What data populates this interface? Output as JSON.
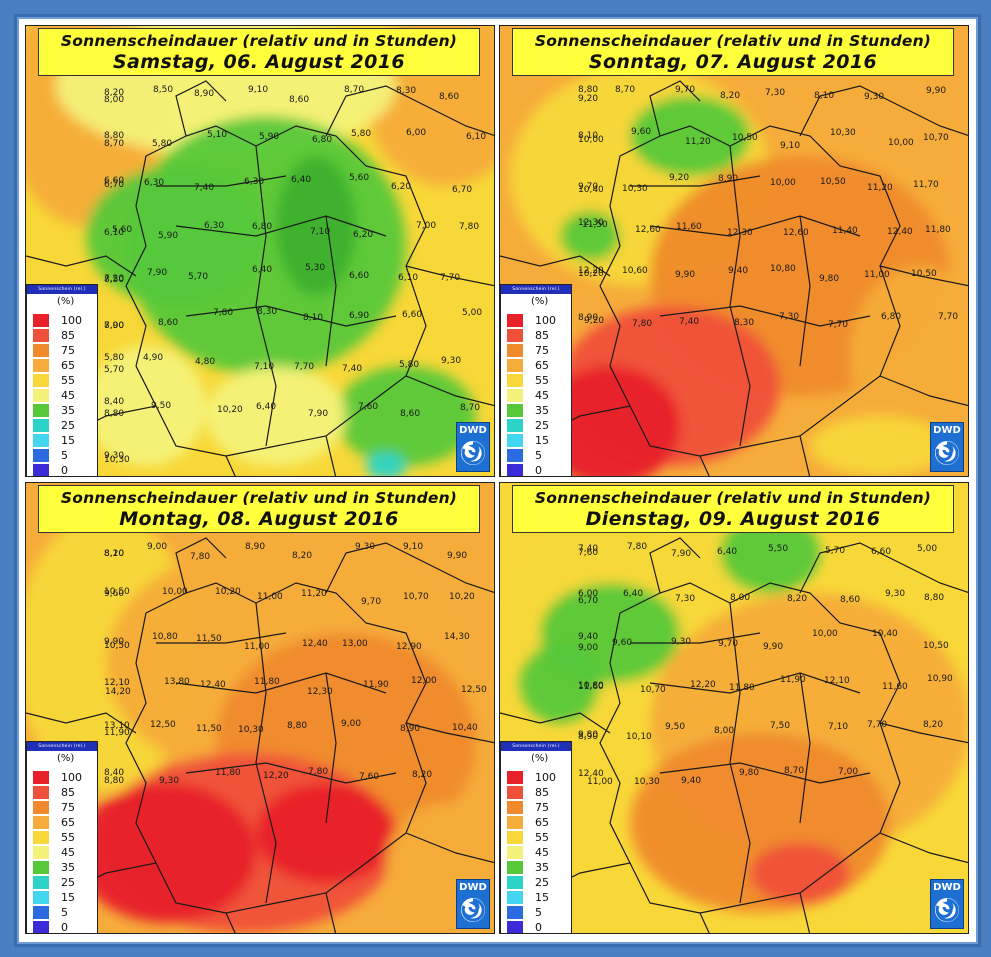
{
  "legend": {
    "header": "Sonnenschein (rel.)",
    "unit": "(%)",
    "levels": [
      {
        "label": "100",
        "color": "#e8202a"
      },
      {
        "label": "85",
        "color": "#f0503a"
      },
      {
        "label": "75",
        "color": "#f08a2c"
      },
      {
        "label": "65",
        "color": "#f6ac3a"
      },
      {
        "label": "55",
        "color": "#f8d838"
      },
      {
        "label": "45",
        "color": "#f4f27a"
      },
      {
        "label": "35",
        "color": "#56c83a"
      },
      {
        "label": "25",
        "color": "#2cd4c8"
      },
      {
        "label": "15",
        "color": "#42d6f0"
      },
      {
        "label": "5",
        "color": "#2a6ce0"
      },
      {
        "label": "0",
        "color": "#3a2ad8"
      }
    ]
  },
  "logo": {
    "text": "DWD"
  },
  "panels": [
    {
      "id": "sat",
      "title1": "Sonnenscheindauer (relativ und in Stunden)",
      "title2": "Samstag, 06. August 2016",
      "theme": "green",
      "values": [
        "8,00",
        "8,20",
        "8,50",
        "8,90",
        "9,10",
        "8,60",
        "8,70",
        "8,30",
        "8,60",
        "8,80",
        "8,70",
        "5,80",
        "5,10",
        "5,90",
        "6,80",
        "5,80",
        "6,00",
        "6,10",
        "6,70",
        "6,60",
        "6,30",
        "7,40",
        "6,30",
        "6,40",
        "5,60",
        "6,20",
        "6,70",
        "6,10",
        "5,60",
        "5,90",
        "6,30",
        "6,80",
        "7,10",
        "6,20",
        "7,00",
        "7,80",
        "8,50",
        "7,20",
        "7,90",
        "5,70",
        "6,40",
        "5,30",
        "6,60",
        "6,10",
        "7,70",
        "7,90",
        "8,00",
        "8,60",
        "7,80",
        "8,30",
        "8,10",
        "6,90",
        "6,60",
        "5,00",
        "5,70",
        "5,80",
        "4,90",
        "4,80",
        "7,10",
        "7,70",
        "7,40",
        "5,80",
        "9,30",
        "8,80",
        "8,40",
        "9,50",
        "10,20",
        "6,40",
        "7,90",
        "7,60",
        "8,60",
        "8,70",
        "9,30",
        "10,30"
      ]
    },
    {
      "id": "sun",
      "title1": "Sonnenscheindauer (relativ und in Stunden)",
      "title2": "Sonntag, 07. August 2016",
      "theme": "orange",
      "values": [
        "9,20",
        "8,80",
        "8,70",
        "9,70",
        "8,20",
        "7,30",
        "8,10",
        "9,30",
        "9,90",
        "8,10",
        "10,00",
        "9,60",
        "11,20",
        "10,50",
        "9,10",
        "10,30",
        "10,00",
        "10,70",
        "9,70",
        "10,40",
        "10,30",
        "9,20",
        "8,90",
        "10,00",
        "10,50",
        "11,20",
        "11,70",
        "12,30",
        "11,50",
        "12,60",
        "11,60",
        "12,30",
        "12,60",
        "11,40",
        "12,40",
        "11,80",
        "12,20",
        "10,20",
        "10,60",
        "9,90",
        "9,40",
        "10,80",
        "9,80",
        "11,00",
        "10,50",
        "8,90",
        "9,20",
        "7,80",
        "7,40",
        "8,30",
        "7,30",
        "7,70",
        "6,80",
        "7,70"
      ]
    },
    {
      "id": "mon",
      "title1": "Sonnenscheindauer (relativ und in Stunden)",
      "title2": "Montag, 08. August 2016",
      "theme": "red",
      "values": [
        "8,20",
        "8,10",
        "9,00",
        "7,80",
        "8,90",
        "8,20",
        "9,30",
        "9,10",
        "9,90",
        "9,60",
        "10,50",
        "10,00",
        "10,20",
        "11,00",
        "11,20",
        "9,70",
        "10,70",
        "10,20",
        "10,50",
        "9,90",
        "10,80",
        "11,50",
        "11,00",
        "12,40",
        "13,00",
        "12,90",
        "14,30",
        "12,10",
        "14,20",
        "13,80",
        "12,40",
        "11,80",
        "12,30",
        "11,90",
        "12,00",
        "12,50",
        "11,90",
        "13,10",
        "12,50",
        "11,50",
        "10,30",
        "8,80",
        "9,00",
        "8,90",
        "10,40",
        "8,80",
        "8,40",
        "9,30",
        "11,80",
        "12,20",
        "7,80",
        "7,60",
        "8,20"
      ]
    },
    {
      "id": "tue",
      "title1": "Sonnenscheindauer (relativ und in Stunden)",
      "title2": "Dienstag, 09. August 2016",
      "theme": "mixed",
      "values": [
        "7,60",
        "7,40",
        "7,80",
        "7,90",
        "6,40",
        "5,50",
        "5,70",
        "6,60",
        "5,00",
        "6,00",
        "6,70",
        "6,40",
        "7,30",
        "8,00",
        "8,20",
        "8,60",
        "9,30",
        "8,80",
        "9,00",
        "9,40",
        "9,60",
        "9,30",
        "9,70",
        "9,90",
        "10,00",
        "10,40",
        "10,50",
        "10,80",
        "11,60",
        "10,70",
        "12,20",
        "11,80",
        "11,90",
        "12,10",
        "11,60",
        "10,90",
        "8,90",
        "9,80",
        "10,10",
        "9,50",
        "8,00",
        "7,50",
        "7,10",
        "7,70",
        "8,20",
        "12,40",
        "11,00",
        "10,30",
        "9,40",
        "9,80",
        "8,70",
        "7,00"
      ]
    }
  ]
}
